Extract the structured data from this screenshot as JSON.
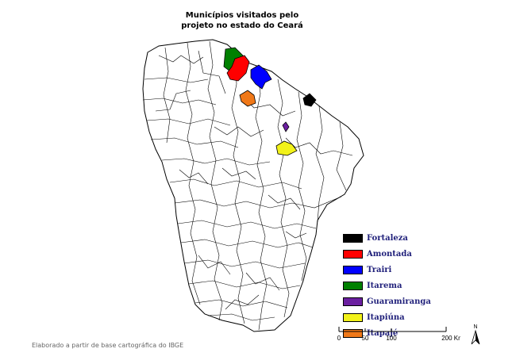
{
  "title": {
    "line1": "Municípios visitados pelo",
    "line2": "projeto no estado do Ceará"
  },
  "legend": [
    {
      "label": "Fortaleza",
      "color": "#000000"
    },
    {
      "label": "Amontada",
      "color": "#ff0000"
    },
    {
      "label": "Trairi",
      "color": "#0000ff"
    },
    {
      "label": "Itarema",
      "color": "#008000"
    },
    {
      "label": "Guaramiranga",
      "color": "#6b1fa0"
    },
    {
      "label": "Itapiúna",
      "color": "#f2f21a"
    },
    {
      "label": "Itapajé",
      "color": "#f07818"
    }
  ],
  "scale": {
    "ticks": [
      "0",
      "50",
      "100",
      "200 Km"
    ]
  },
  "north_label": "N",
  "credit": "Elaborado a partir de base cartográfica do IBGE"
}
